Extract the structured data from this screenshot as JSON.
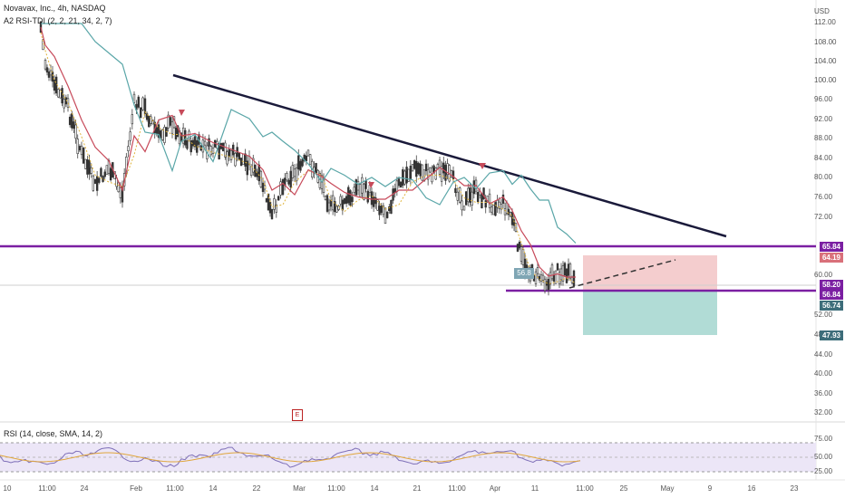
{
  "header": {
    "symbol_line": "Novavax, Inc., 4h, NASDAQ",
    "indicator_line": "A2 RSI-TDI (2, 2, 21, 34, 2, 7)",
    "rsi_line": "RSI (14, close, SMA, 14, 2)",
    "currency_label": "USD"
  },
  "price_axis": [
    "112.00",
    "108.00",
    "104.00",
    "100.00",
    "96.00",
    "92.00",
    "88.00",
    "84.00",
    "80.00",
    "76.00",
    "72.00",
    "60.00",
    "52.00",
    "48.00",
    "44.00",
    "40.00",
    "36.00",
    "32.00"
  ],
  "rsi_axis": [
    "75.00",
    "50.00",
    "25.00"
  ],
  "price_tags": [
    {
      "label": "65.84",
      "color": "#7b1fa2"
    },
    {
      "label": "64.19",
      "color": "#d9707a"
    },
    {
      "label": "58.20",
      "color": "#7b1fa2"
    },
    {
      "label": "56.84",
      "color": "#7b1fa2"
    },
    {
      "label": "56.74",
      "color": "#3d6d7a"
    },
    {
      "label": "47.93",
      "color": "#3d6d7a"
    }
  ],
  "time_axis": [
    "10",
    "11:00",
    "24",
    "Feb",
    "11:00",
    "14",
    "22",
    "Mar",
    "11:00",
    "14",
    "21",
    "11:00",
    "Apr",
    "11",
    "11:00",
    "25",
    "May",
    "9",
    "16",
    "23"
  ],
  "chart_labels": {
    "marker_box": "56.8",
    "event_marker": "E"
  },
  "colors": {
    "support_line": "#7b1fa2",
    "trend_line": "#1a1a3a",
    "stop_zone": "#f2c4c6",
    "target_zone": "#a8d8d2",
    "up_candle": "#333333",
    "down_candle": "#333333",
    "ma_red": "#c74a5a",
    "ma_teal": "#5aa6a8",
    "rsi_line": "#7e6fb8",
    "rsi_signal": "#e0a63c"
  }
}
